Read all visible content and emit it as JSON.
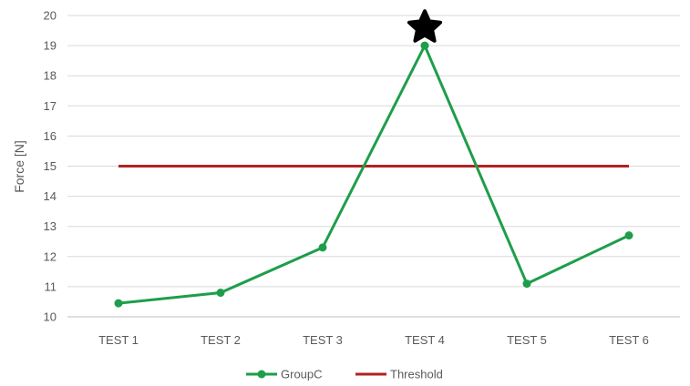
{
  "chart_data": {
    "type": "line",
    "title": "",
    "xlabel": "",
    "ylabel": "Force [N]",
    "categories": [
      "TEST 1",
      "TEST 2",
      "TEST 3",
      "TEST 4",
      "TEST 5",
      "TEST 6"
    ],
    "series": [
      {
        "name": "GroupC",
        "values": [
          10.45,
          10.8,
          12.3,
          19.0,
          11.1,
          12.7
        ],
        "color": "#1e9e4a"
      },
      {
        "name": "Threshold",
        "values": [
          15,
          15,
          15,
          15,
          15,
          15
        ],
        "color": "#b22222"
      }
    ],
    "ylim": [
      10,
      20
    ],
    "yticks": [
      10,
      11,
      12,
      13,
      14,
      15,
      16,
      17,
      18,
      19,
      20
    ],
    "grid": "horizontal",
    "legend": "bottom-center",
    "annotations": [
      {
        "type": "star-marker",
        "category": "TEST 4",
        "y": 19.6,
        "color": "#000000"
      }
    ]
  }
}
